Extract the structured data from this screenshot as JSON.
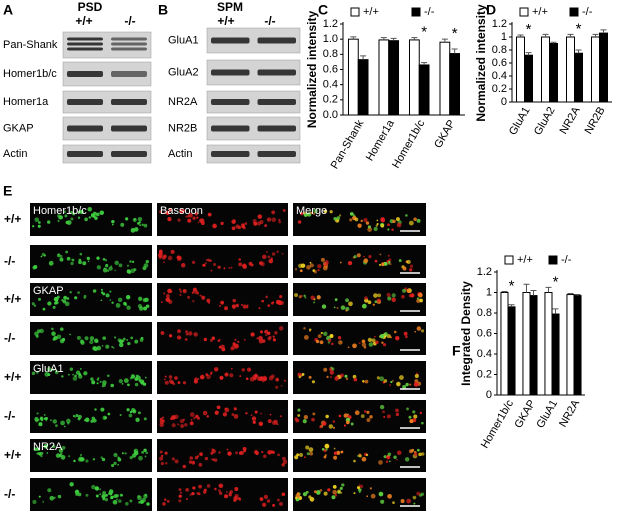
{
  "panel_labels": [
    "A",
    "B",
    "C",
    "D",
    "E",
    "F"
  ],
  "blots": [
    {
      "fraction": "PSD",
      "genotypes": [
        "+/+",
        "-/-"
      ],
      "proteins": [
        "Pan-Shank",
        "Homer1b/c",
        "Homer1a",
        "GKAP",
        "Actin"
      ]
    },
    {
      "fraction": "SPM",
      "genotypes": [
        "+/+",
        "-/-"
      ],
      "proteins": [
        "GluA1",
        "GluA2",
        "NR2A",
        "NR2B",
        "Actin"
      ]
    }
  ],
  "imaging": {
    "column_titles": [
      "Bassoon",
      "Merge"
    ],
    "rows": [
      {
        "genotype": "+/+",
        "marker": "Homer1b/c"
      },
      {
        "genotype": "-/-"
      },
      {
        "genotype": "+/+",
        "marker": "GKAP"
      },
      {
        "genotype": "-/-"
      },
      {
        "genotype": "+/+",
        "marker": "GluA1"
      },
      {
        "genotype": "-/-"
      },
      {
        "genotype": "+/+",
        "marker": "NR2A"
      },
      {
        "genotype": "-/-"
      }
    ]
  },
  "chart_data": [
    {
      "type": "bar",
      "ylabel": "Normalized intensity",
      "categories": [
        "Pan-Shank",
        "Homer1a",
        "Homer1b/c",
        "GKAP"
      ],
      "series": [
        {
          "name": "+/+",
          "color": "#ffffff",
          "values": [
            1.0,
            0.99,
            0.99,
            0.96
          ],
          "errors": [
            0.03,
            0.03,
            0.03,
            0.04
          ]
        },
        {
          "name": "-/-",
          "color": "#000000",
          "values": [
            0.73,
            0.98,
            0.66,
            0.81
          ],
          "errors": [
            0.05,
            0.03,
            0.03,
            0.06
          ]
        }
      ],
      "significance": [
        null,
        null,
        "*",
        "*"
      ],
      "ylim": [
        0,
        1.2
      ],
      "yticks": [
        {
          "value": 0,
          "label": "0.0"
        },
        0.2,
        0.4,
        0.6,
        0.8,
        {
          "value": 1,
          "label": "1.0"
        },
        1.2
      ],
      "legend": "top"
    },
    {
      "type": "bar",
      "ylabel": "Normalized intensity",
      "categories": [
        "GluA1",
        "GluA2",
        "NR2A",
        "NR2B"
      ],
      "series": [
        {
          "name": "+/+",
          "color": "#ffffff",
          "values": [
            1.0,
            1.0,
            1.0,
            1.0
          ],
          "errors": [
            0.03,
            0.04,
            0.04,
            0.04
          ]
        },
        {
          "name": "-/-",
          "color": "#000000",
          "values": [
            0.72,
            0.9,
            0.75,
            1.06
          ],
          "errors": [
            0.04,
            0.02,
            0.05,
            0.05
          ]
        }
      ],
      "significance": [
        "*",
        null,
        "*",
        null
      ],
      "ylim": [
        0,
        1.2
      ],
      "yticks": [
        0,
        0.2,
        0.4,
        0.6,
        0.8,
        1,
        1.2
      ],
      "legend": "top"
    },
    {
      "type": "bar",
      "ylabel": "Integrated  Density",
      "categories": [
        "Homer1b/c",
        "GKAP",
        "GluA1",
        "NR2A"
      ],
      "series": [
        {
          "name": "+/+",
          "color": "#ffffff",
          "values": [
            1.0,
            1.0,
            1.0,
            0.98
          ],
          "errors": [
            0.01,
            0.08,
            0.05,
            0.01
          ]
        },
        {
          "name": "-/-",
          "color": "#000000",
          "values": [
            0.86,
            0.97,
            0.79,
            0.97
          ],
          "errors": [
            0.02,
            0.05,
            0.05,
            0.01
          ]
        }
      ],
      "significance": [
        "*",
        null,
        "*",
        null
      ],
      "ylim": [
        0,
        1.2
      ],
      "yticks": [
        0,
        0.2,
        0.4,
        0.6,
        0.8,
        1,
        1.2
      ],
      "legend": "top"
    }
  ]
}
